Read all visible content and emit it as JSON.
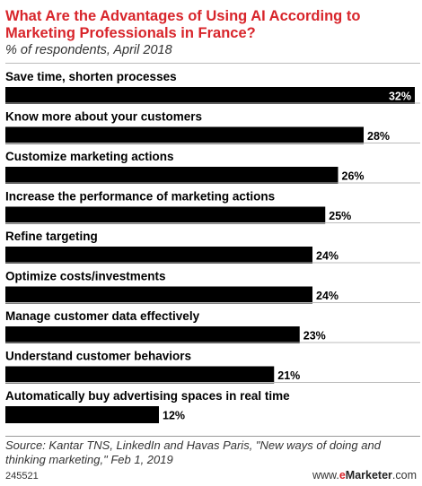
{
  "header": {
    "title": "What Are the Advantages of Using AI According to Marketing Professionals in France?",
    "subtitle": "% of respondents, April 2018"
  },
  "footer": {
    "source": "Source: Kantar TNS, LinkedIn and Havas Paris, \"New ways of doing and thinking marketing,\" Feb 1, 2019",
    "code": "245521",
    "brand_prefix": "www.",
    "brand_e": "e",
    "brand_name": "Marketer",
    "brand_suffix": ".com"
  },
  "colors": {
    "title": "#d8252b",
    "bar": "#000000",
    "label": "#000000"
  },
  "chart_data": {
    "type": "bar",
    "orientation": "horizontal",
    "categories": [
      "Save time, shorten processes",
      "Know more about your customers",
      "Customize marketing actions",
      "Increase the performance of marketing actions",
      "Refine targeting",
      "Optimize costs/investments",
      "Manage customer data effectively",
      "Understand customer behaviors",
      "Automatically buy advertising spaces in real time"
    ],
    "values": [
      32,
      28,
      26,
      25,
      24,
      24,
      23,
      21,
      12
    ],
    "value_suffix": "%",
    "data_labels": [
      "32%",
      "28%",
      "26%",
      "25%",
      "24%",
      "24%",
      "23%",
      "21%",
      "12%"
    ],
    "xlim": [
      0,
      32
    ],
    "grid": false,
    "legend": "none"
  }
}
